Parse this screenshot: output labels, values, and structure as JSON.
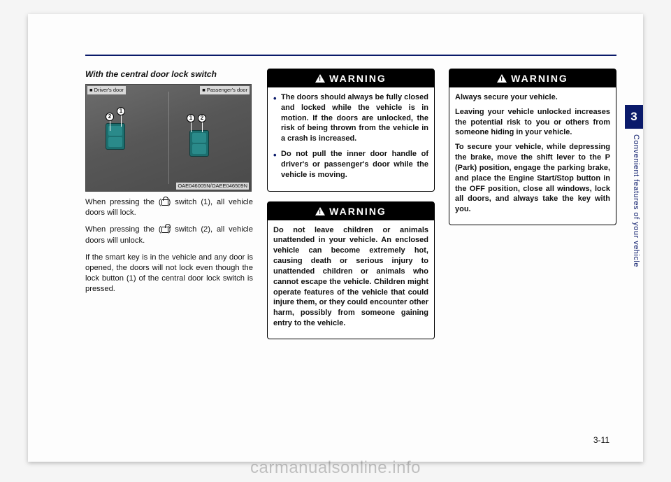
{
  "chapter_tab": "3",
  "side_label": "Convenient features of your vehicle",
  "page_number": "3-11",
  "watermark": "carmanualsonline.info",
  "col1": {
    "heading": "With the central door lock switch",
    "fig": {
      "label_left": "■ Driver's door",
      "label_right": "■ Passenger's door",
      "code": "OAE046005N/OAEE046509N",
      "marker1": "1",
      "marker2": "2"
    },
    "p1_a": "When pressing the (",
    "p1_b": ") switch (1), all vehicle doors will lock.",
    "p2_a": "When pressing the (",
    "p2_b": ") switch (2), all vehicle doors will unlock.",
    "p3": "If the smart key is in the vehicle and any door is opened, the doors will not lock even though the lock button (1) of the central door lock switch is pressed."
  },
  "warning_label": "WARNING",
  "warn1": {
    "li1": "The doors should always be fully closed and locked while the vehicle is in motion. If the doors are unlocked, the risk of being thrown from the vehicle in a crash is increased.",
    "li2": "Do not pull the inner door handle of driver's or passen­ger's door while the vehicle is moving."
  },
  "warn2": {
    "p1": "Do not leave children or animals unattended in your vehicle. An enclosed vehicle can become extremely hot, causing death or serious injury to unattended children or animals who cannot escape the vehicle. Children might operate features of the vehicle that could injure them, or they could encounter other harm, possibly from someone gaining entry to the vehicle."
  },
  "warn3": {
    "p1": "Always secure your vehicle.",
    "p2": "Leaving your vehicle unlocked increases the potential risk to you or others from someone hiding in your vehicle.",
    "p3": "To secure your vehicle, while depressing the brake, move the shift lever to the P (Park) posi­tion, engage the parking brake, and place the Engine Start/Stop button in the OFF position, close all windows, lock all doors, and always take the key with you."
  }
}
